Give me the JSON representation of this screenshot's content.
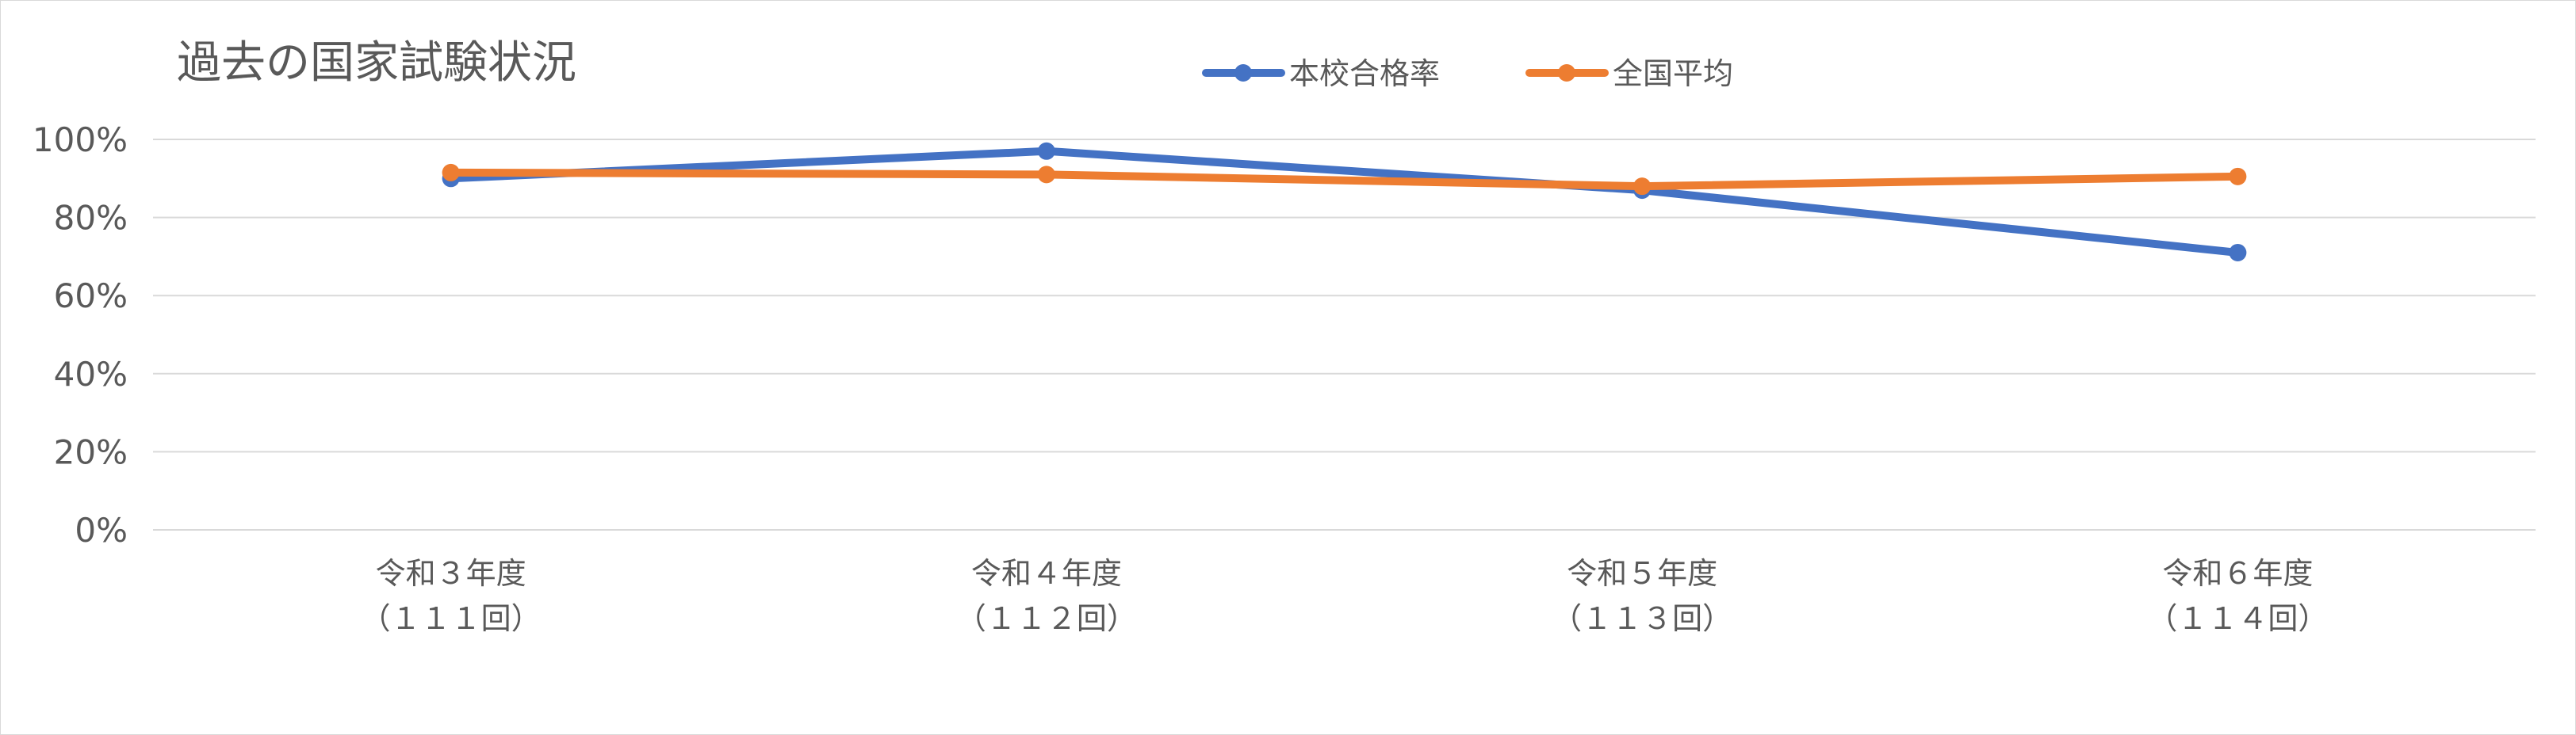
{
  "chart_data": {
    "type": "line",
    "title": "過去の国家試験状況",
    "categories": [
      [
        "令和３年度",
        "（１１１回）"
      ],
      [
        "令和４年度",
        "（１１２回）"
      ],
      [
        "令和５年度",
        "（１１３回）"
      ],
      [
        "令和６年度",
        "（１１４回）"
      ]
    ],
    "series": [
      {
        "name": "本校合格率",
        "color": "#4472c4",
        "values": [
          90,
          97,
          87,
          71
        ]
      },
      {
        "name": "全国平均",
        "color": "#ed7d31",
        "values": [
          91.5,
          91,
          88,
          90.5
        ]
      }
    ],
    "ylim": [
      0,
      100
    ],
    "y_ticks": [
      "0%",
      "20%",
      "40%",
      "60%",
      "80%",
      "100%"
    ],
    "y_tick_values": [
      0,
      20,
      40,
      60,
      80,
      100
    ],
    "grid": true,
    "legend_position": "top"
  }
}
